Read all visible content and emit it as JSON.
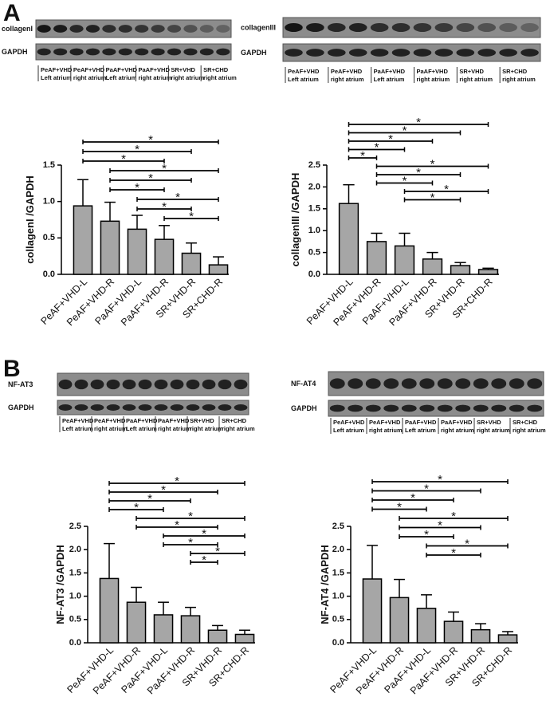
{
  "figure": {
    "panel_labels": [
      "A",
      "B"
    ]
  },
  "blots": [
    {
      "target": "collagenI",
      "control": "GAPDH",
      "lanes": [
        "PeAF+VHD",
        "PeAF+VHD",
        "PaAF+VHD",
        "PaAF+VHD",
        "SR+VHD",
        "SR+CHD"
      ],
      "lanes_sub": [
        "Left atrium",
        "right atrium",
        "Left atrium",
        "right atrium",
        "right atrium",
        "right atrium"
      ]
    },
    {
      "target": "collagenIII",
      "control": "GAPDH",
      "lanes": [
        "PeAF+VHD",
        "PeAF+VHD",
        "PaAF+VHD",
        "PaAF+VHD",
        "SR+VHD",
        "SR+CHD"
      ],
      "lanes_sub": [
        "Left atrium",
        "right atrium",
        "Left atrium",
        "right atrium",
        "right atrium",
        "right atrium"
      ]
    },
    {
      "target": "NF-AT3",
      "control": "GAPDH",
      "lanes": [
        "PeAF+VHD",
        "PeAF+VHD",
        "PaAF+VHD",
        "PaAF+VHD",
        "SR+VHD",
        "SR+CHD"
      ],
      "lanes_sub": [
        "Left atrium",
        "right atrium",
        "Left atrium",
        "right atrium",
        "right atrium",
        "right atrium"
      ]
    },
    {
      "target": "NF-AT4",
      "control": "GAPDH",
      "lanes": [
        "PeAF+VHD",
        "PeAF+VHD",
        "PaAF+VHD",
        "PaAF+VHD",
        "SR+VHD",
        "SR+CHD"
      ],
      "lanes_sub": [
        "Left atrium",
        "right atrium",
        "Left atrium",
        "right atrium",
        "right atrium",
        "right atrium"
      ]
    }
  ],
  "chart_data": [
    {
      "type": "bar",
      "y_label": "collagenI /GAPDH",
      "color": "#a6a6a6",
      "categories": [
        "PeAF+VHD-L",
        "PeAF+VHD-R",
        "PaAF+VHD-L",
        "PaAF+VHD-R",
        "SR+VHD-R",
        "SR+CHD-R"
      ],
      "values": [
        0.94,
        0.73,
        0.62,
        0.48,
        0.29,
        0.13
      ],
      "errors": [
        0.36,
        0.26,
        0.19,
        0.19,
        0.14,
        0.11
      ],
      "ylim": [
        0,
        1.5
      ],
      "yticks": [
        {
          "value": 0,
          "label": "0.0"
        },
        0.5,
        {
          "value": 1,
          "label": "1.0"
        },
        1.5
      ],
      "significance": [
        {
          "from": 0,
          "to": 5,
          "label": "*"
        },
        {
          "from": 0,
          "to": 4,
          "label": "*"
        },
        {
          "from": 0,
          "to": 3,
          "label": "*"
        },
        {
          "from": 1,
          "to": 5,
          "label": "*"
        },
        {
          "from": 1,
          "to": 4,
          "label": "*"
        },
        {
          "from": 1,
          "to": 3,
          "label": "*"
        },
        {
          "from": 2,
          "to": 5,
          "label": "*"
        },
        {
          "from": 2,
          "to": 4,
          "label": "*"
        },
        {
          "from": 3,
          "to": 5,
          "label": "*"
        }
      ]
    },
    {
      "type": "bar",
      "y_label": "collagenIII /GAPDH",
      "color": "#a6a6a6",
      "categories": [
        "PeAF+VHD-L",
        "PeAF+VHD-R",
        "PaAF+VHD-L",
        "PaAF+VHD-R",
        "SR+VHD-R",
        "SR+CHD-R"
      ],
      "values": [
        1.62,
        0.75,
        0.65,
        0.35,
        0.2,
        0.11
      ],
      "errors": [
        0.43,
        0.19,
        0.29,
        0.15,
        0.07,
        0.03
      ],
      "ylim": [
        0,
        2.5
      ],
      "yticks": [
        {
          "value": 0,
          "label": "0.0"
        },
        0.5,
        {
          "value": 1,
          "label": "1.0"
        },
        1.5,
        {
          "value": 2,
          "label": "2.0"
        },
        2.5
      ],
      "significance": [
        {
          "from": 0,
          "to": 5,
          "label": "*"
        },
        {
          "from": 0,
          "to": 4,
          "label": "*"
        },
        {
          "from": 0,
          "to": 3,
          "label": "*"
        },
        {
          "from": 0,
          "to": 2,
          "label": "*"
        },
        {
          "from": 0,
          "to": 1,
          "label": "*"
        },
        {
          "from": 1,
          "to": 5,
          "label": "*"
        },
        {
          "from": 1,
          "to": 4,
          "label": "*"
        },
        {
          "from": 1,
          "to": 3,
          "label": "*"
        },
        {
          "from": 2,
          "to": 5,
          "label": "*"
        },
        {
          "from": 2,
          "to": 4,
          "label": "*"
        }
      ]
    },
    {
      "type": "bar",
      "y_label": "NF-AT3 /GAPDH",
      "color": "#a6a6a6",
      "categories": [
        "PeAF+VHD-L",
        "PeAF+VHD-R",
        "PaAF+VHD-L",
        "PaAF+VHD-R",
        "SR+VHD-R",
        "SR+CHD-R"
      ],
      "values": [
        1.38,
        0.87,
        0.6,
        0.58,
        0.27,
        0.18
      ],
      "errors": [
        0.75,
        0.32,
        0.27,
        0.18,
        0.1,
        0.09
      ],
      "ylim": [
        0,
        2.5
      ],
      "yticks": [
        {
          "value": 0,
          "label": "0.0"
        },
        0.5,
        {
          "value": 1,
          "label": "1.0"
        },
        1.5,
        {
          "value": 2,
          "label": "2.0"
        },
        2.5
      ],
      "significance": [
        {
          "from": 0,
          "to": 5,
          "label": "*"
        },
        {
          "from": 0,
          "to": 4,
          "label": "*"
        },
        {
          "from": 0,
          "to": 3,
          "label": "*"
        },
        {
          "from": 0,
          "to": 2,
          "label": "*"
        },
        {
          "from": 1,
          "to": 5,
          "label": "*"
        },
        {
          "from": 1,
          "to": 4,
          "label": "*"
        },
        {
          "from": 2,
          "to": 5,
          "label": "*"
        },
        {
          "from": 2,
          "to": 4,
          "label": "*"
        },
        {
          "from": 3,
          "to": 5,
          "label": "*"
        },
        {
          "from": 3,
          "to": 4,
          "label": "*"
        }
      ]
    },
    {
      "type": "bar",
      "y_label": "NF-AT4 /GAPDH",
      "color": "#a6a6a6",
      "categories": [
        "PeAF+VHD-L",
        "PeAF+VHD-R",
        "PaAF+VHD-L",
        "PaAF+VHD-R",
        "SR+VHD-R",
        "SR+CHD-R"
      ],
      "values": [
        1.37,
        0.97,
        0.74,
        0.46,
        0.28,
        0.17
      ],
      "errors": [
        0.72,
        0.39,
        0.29,
        0.2,
        0.13,
        0.07
      ],
      "ylim": [
        0,
        2.5
      ],
      "yticks": [
        {
          "value": 0,
          "label": "0.0"
        },
        0.5,
        {
          "value": 1,
          "label": "1.0"
        },
        1.5,
        {
          "value": 2,
          "label": "2.0"
        },
        2.5
      ],
      "significance": [
        {
          "from": 0,
          "to": 5,
          "label": "*"
        },
        {
          "from": 0,
          "to": 4,
          "label": "*"
        },
        {
          "from": 0,
          "to": 3,
          "label": "*"
        },
        {
          "from": 0,
          "to": 2,
          "label": "*"
        },
        {
          "from": 1,
          "to": 5,
          "label": "*"
        },
        {
          "from": 1,
          "to": 4,
          "label": "*"
        },
        {
          "from": 1,
          "to": 3,
          "label": "*"
        },
        {
          "from": 2,
          "to": 5,
          "label": "*"
        },
        {
          "from": 2,
          "to": 4,
          "label": "*"
        }
      ]
    }
  ]
}
